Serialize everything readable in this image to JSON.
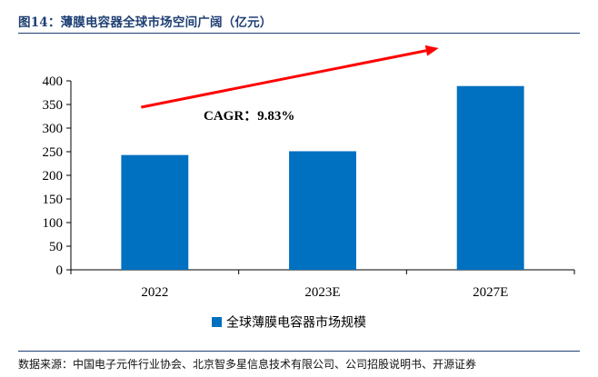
{
  "header": {
    "title": "图14：薄膜电容器全球市场空间广阔（亿元）"
  },
  "footer": {
    "source": "数据来源：中国电子元件行业协会、北京智多星信息技术有限公司、公司招股说明书、开源证券"
  },
  "chart_data": {
    "type": "bar",
    "title": "",
    "xlabel": "",
    "ylabel": "",
    "categories": [
      "2022",
      "2023E",
      "2027E"
    ],
    "series": [
      {
        "name": "全球薄膜电容器市场规模",
        "values": [
          243,
          251,
          389
        ],
        "color": "#0070c0"
      }
    ],
    "ylim": [
      0,
      400
    ],
    "yticks": [
      "0",
      "50",
      "100",
      "150",
      "200",
      "250",
      "300",
      "350",
      "400"
    ],
    "grid": false,
    "legend_position": "bottom",
    "annotation": {
      "text": "CAGR：9.83%",
      "arrow_color": "#ff0000"
    }
  }
}
